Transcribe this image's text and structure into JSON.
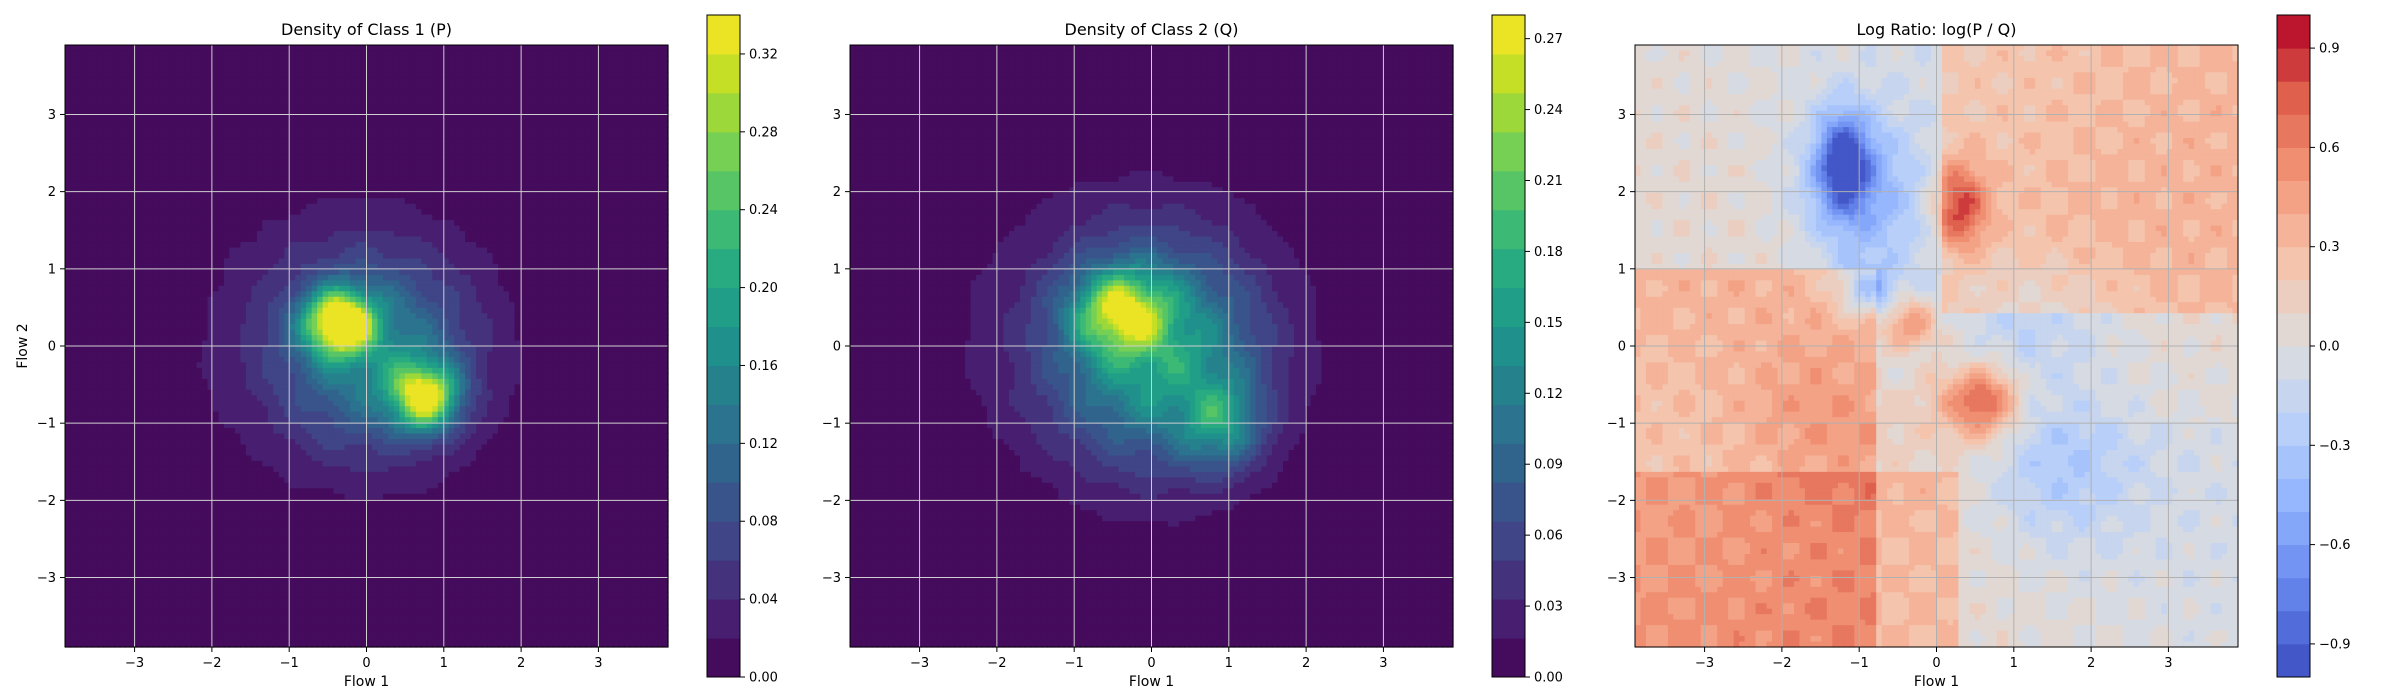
{
  "chart_data": [
    {
      "type": "heatmap",
      "title": "Density of Class 1 (P)",
      "xlabel": "Flow 1",
      "ylabel": "Flow 2",
      "xlim": [
        -3.9,
        3.9
      ],
      "ylim": [
        -3.9,
        3.9
      ],
      "xticks": [
        -3,
        -2,
        -1,
        0,
        1,
        2,
        3
      ],
      "yticks": [
        -3,
        -2,
        -1,
        0,
        1,
        2,
        3
      ],
      "xtick_labels": [
        "−3",
        "−2",
        "−1",
        "0",
        "1",
        "2",
        "3"
      ],
      "ytick_labels": [
        "−3",
        "−2",
        "−1",
        "0",
        "1",
        "2",
        "3"
      ],
      "grid": true,
      "colormap": "viridis",
      "colorbar": {
        "min": 0.0,
        "max": 0.34,
        "ticks": [
          0.0,
          0.04,
          0.08,
          0.12,
          0.16,
          0.2,
          0.24,
          0.28,
          0.32
        ],
        "tick_labels": [
          "0.00",
          "0.04",
          "0.08",
          "0.12",
          "0.16",
          "0.20",
          "0.24",
          "0.28",
          "0.32"
        ]
      },
      "blobs": [
        {
          "x": -0.35,
          "y": 0.3,
          "sx": 0.3,
          "sy": 0.28,
          "amp": 0.32
        },
        {
          "x": 0.75,
          "y": -0.65,
          "sx": 0.3,
          "sy": 0.3,
          "amp": 0.28
        },
        {
          "x": 0.1,
          "y": -0.1,
          "sx": 0.85,
          "sy": 0.85,
          "amp": 0.12
        },
        {
          "x": -0.3,
          "y": 0.1,
          "sx": 1.35,
          "sy": 1.25,
          "amp": 0.04
        }
      ]
    },
    {
      "type": "heatmap",
      "title": "Density of Class 2 (Q)",
      "xlabel": "Flow 1",
      "ylabel": "",
      "xlim": [
        -3.9,
        3.9
      ],
      "ylim": [
        -3.9,
        3.9
      ],
      "xticks": [
        -3,
        -2,
        -1,
        0,
        1,
        2,
        3
      ],
      "yticks": [
        -3,
        -2,
        -1,
        0,
        1,
        2,
        3
      ],
      "xtick_labels": [
        "−3",
        "−2",
        "−1",
        "0",
        "1",
        "2",
        "3"
      ],
      "ytick_labels": [
        "−3",
        "−2",
        "−1",
        "0",
        "1",
        "2",
        "3"
      ],
      "grid": true,
      "colormap": "viridis",
      "colorbar": {
        "min": 0.0,
        "max": 0.28,
        "ticks": [
          0.0,
          0.03,
          0.06,
          0.09,
          0.12,
          0.15,
          0.18,
          0.21,
          0.24,
          0.27
        ],
        "tick_labels": [
          "0.00",
          "0.03",
          "0.06",
          "0.09",
          "0.12",
          "0.15",
          "0.18",
          "0.21",
          "0.24",
          "0.27"
        ]
      },
      "blobs": [
        {
          "x": -0.4,
          "y": 0.45,
          "sx": 0.4,
          "sy": 0.35,
          "amp": 0.17
        },
        {
          "x": 0.1,
          "y": -0.1,
          "sx": 0.9,
          "sy": 0.95,
          "amp": 0.13
        },
        {
          "x": 0.9,
          "y": -1.0,
          "sx": 0.35,
          "sy": 0.4,
          "amp": 0.1
        },
        {
          "x": -0.35,
          "y": 0.1,
          "sx": 1.4,
          "sy": 1.3,
          "amp": 0.04
        }
      ]
    },
    {
      "type": "heatmap",
      "title": "Log Ratio: log(P / Q)",
      "xlabel": "Flow 1",
      "ylabel": "",
      "xlim": [
        -3.9,
        3.9
      ],
      "ylim": [
        -3.9,
        3.9
      ],
      "xticks": [
        -3,
        -2,
        -1,
        0,
        1,
        2,
        3
      ],
      "yticks": [
        -3,
        -2,
        -1,
        0,
        1,
        2,
        3
      ],
      "xtick_labels": [
        "−3",
        "−2",
        "−1",
        "0",
        "1",
        "2",
        "3"
      ],
      "ytick_labels": [
        "−3",
        "−2",
        "−1",
        "0",
        "1",
        "2",
        "3"
      ],
      "grid": true,
      "colormap": "coolwarm",
      "colorbar": {
        "min": -1.0,
        "max": 1.0,
        "ticks": [
          -0.9,
          -0.6,
          -0.3,
          0.0,
          0.3,
          0.6,
          0.9
        ],
        "tick_labels": [
          "−0.9",
          "−0.6",
          "−0.3",
          "0.0",
          "0.3",
          "0.6",
          "0.9"
        ]
      },
      "blobs": [
        {
          "x": -1.2,
          "y": 2.4,
          "sx": 0.25,
          "sy": 0.45,
          "amp": -0.85
        },
        {
          "x": -1.0,
          "y": 1.9,
          "sx": 0.55,
          "sy": 0.7,
          "amp": -0.45
        },
        {
          "x": 0.3,
          "y": 1.8,
          "sx": 0.25,
          "sy": 0.4,
          "amp": 0.65
        },
        {
          "x": 0.6,
          "y": -0.7,
          "sx": 0.35,
          "sy": 0.35,
          "amp": 0.8
        },
        {
          "x": -0.3,
          "y": 0.3,
          "sx": 0.3,
          "sy": 0.25,
          "amp": 0.45
        },
        {
          "x": -0.9,
          "y": 0.7,
          "sx": 0.25,
          "sy": 0.25,
          "amp": -0.55
        },
        {
          "x": 1.2,
          "y": 0.4,
          "sx": 0.8,
          "sy": 0.6,
          "amp": -0.25
        },
        {
          "x": 1.6,
          "y": -1.6,
          "sx": 0.7,
          "sy": 0.7,
          "amp": -0.25
        },
        {
          "x": -1.4,
          "y": -0.9,
          "sx": 0.8,
          "sy": 0.7,
          "amp": 0.25
        }
      ],
      "background_regions": [
        {
          "region": "left",
          "value": 0.3
        },
        {
          "region": "bottom-left",
          "value": 0.3
        },
        {
          "region": "top-right",
          "value": 0.3
        },
        {
          "region": "top-left",
          "value": 0.0
        },
        {
          "region": "right",
          "value": 0.0
        }
      ]
    }
  ]
}
